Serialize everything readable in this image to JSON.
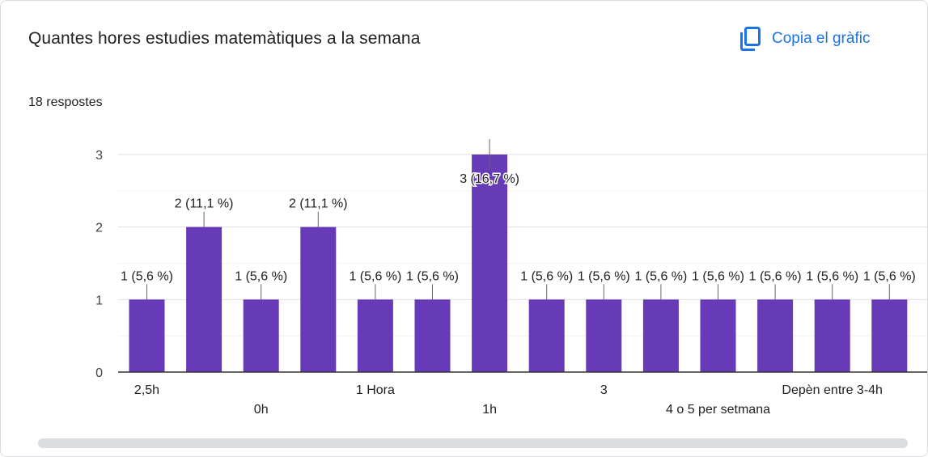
{
  "header": {
    "title": "Quantes hores estudies matemàtiques a la semana",
    "copy_label": "Copia el gràfic",
    "copy_icon": "copy-icon",
    "responses": "18 respostes"
  },
  "colors": {
    "bar": "#673ab7",
    "accent": "#1a73e8",
    "text": "#202124",
    "grid": "#ebebeb",
    "axis": "#333333"
  },
  "chart_data": {
    "type": "bar",
    "title": "Quantes hores estudies matemàtiques a la semana",
    "xlabel": "",
    "ylabel": "",
    "ylim": [
      0,
      3
    ],
    "yticks": [
      0,
      1,
      2,
      3
    ],
    "grid": true,
    "categories": [
      "2,5h",
      "",
      "0h",
      "",
      "1 Hora",
      "",
      "1h",
      "",
      "3",
      "",
      "4 o 5 per setmana",
      "",
      "Depèn entre 3-4h",
      ""
    ],
    "values": [
      1,
      2,
      1,
      2,
      1,
      1,
      3,
      1,
      1,
      1,
      1,
      1,
      1,
      1
    ],
    "data_labels": [
      "1 (5,6 %)",
      "2 (11,1 %)",
      "1 (5,6 %)",
      "2 (11,1 %)",
      "1 (5,6 %)",
      "1 (5,6 %)",
      "3 (16,7 %)",
      "1 (5,6 %)",
      "1 (5,6 %)",
      "1 (5,6 %)",
      "1 (5,6 %)",
      "1 (5,6 %)",
      "1 (5,6 %)",
      "1 (5,6 %)"
    ]
  }
}
